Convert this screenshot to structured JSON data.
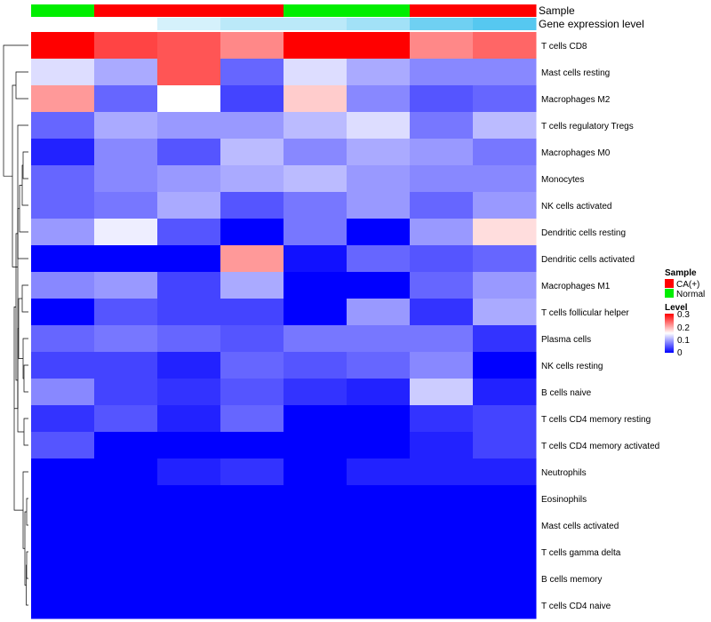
{
  "chart_data": {
    "type": "heatmap",
    "rows": [
      "T cells CD8",
      "Mast cells resting",
      "Macrophages M2",
      "T cells regulatory  Tregs",
      "Macrophages M0",
      "Monocytes",
      "NK cells activated",
      "Dendritic cells resting",
      "Dendritic cells activated",
      "Macrophages M1",
      "T cells follicular helper",
      "Plasma cells",
      "NK cells resting",
      "B cells naive",
      "T cells CD4 memory resting",
      "T cells CD4 memory activated",
      "Neutrophils",
      "Eosinophils",
      "Mast cells activated",
      "T cells gamma delta",
      "B cells memory",
      "T cells CD4 naive"
    ],
    "values": [
      [
        0.3,
        0.26,
        0.25,
        0.22,
        0.3,
        0.3,
        0.22,
        0.24
      ],
      [
        0.13,
        0.1,
        0.25,
        0.06,
        0.13,
        0.1,
        0.08,
        0.08
      ],
      [
        0.21,
        0.06,
        0.15,
        0.04,
        0.18,
        0.08,
        0.05,
        0.06
      ],
      [
        0.06,
        0.1,
        0.09,
        0.09,
        0.11,
        0.13,
        0.07,
        0.11
      ],
      [
        0.02,
        0.08,
        0.05,
        0.11,
        0.08,
        0.1,
        0.09,
        0.07
      ],
      [
        0.06,
        0.08,
        0.09,
        0.1,
        0.11,
        0.09,
        0.08,
        0.08
      ],
      [
        0.06,
        0.07,
        0.1,
        0.05,
        0.07,
        0.09,
        0.06,
        0.09
      ],
      [
        0.09,
        0.14,
        0.05,
        0.0,
        0.07,
        0.0,
        0.09,
        0.17
      ],
      [
        0.0,
        0.0,
        0.0,
        0.21,
        0.01,
        0.06,
        0.05,
        0.06
      ],
      [
        0.08,
        0.09,
        0.04,
        0.1,
        0.0,
        0.0,
        0.06,
        0.09
      ],
      [
        0.0,
        0.05,
        0.04,
        0.04,
        0.0,
        0.09,
        0.03,
        0.1
      ],
      [
        0.06,
        0.07,
        0.06,
        0.05,
        0.07,
        0.07,
        0.07,
        0.03
      ],
      [
        0.04,
        0.04,
        0.02,
        0.06,
        0.05,
        0.06,
        0.08,
        0.0
      ],
      [
        0.08,
        0.04,
        0.03,
        0.05,
        0.03,
        0.02,
        0.12,
        0.02
      ],
      [
        0.03,
        0.05,
        0.02,
        0.06,
        0.0,
        0.0,
        0.03,
        0.04
      ],
      [
        0.05,
        0.0,
        0.0,
        0.0,
        0.0,
        0.0,
        0.02,
        0.04
      ],
      [
        0.0,
        0.0,
        0.02,
        0.03,
        0.0,
        0.02,
        0.02,
        0.02
      ],
      [
        0.0,
        0.0,
        0.0,
        0.0,
        0.0,
        0.0,
        0.0,
        0.0
      ],
      [
        0.0,
        0.0,
        0.0,
        0.0,
        0.0,
        0.0,
        0.0,
        0.0
      ],
      [
        0.0,
        0.0,
        0.0,
        0.0,
        0.0,
        0.0,
        0.0,
        0.0
      ],
      [
        0.0,
        0.0,
        0.0,
        0.0,
        0.0,
        0.0,
        0.0,
        0.0
      ],
      [
        0.0,
        0.0,
        0.0,
        0.0,
        0.0,
        0.0,
        0.0,
        0.0
      ]
    ],
    "column_annotations": {
      "sample_label": "Sample",
      "sample": [
        "Normal",
        "CA(+)",
        "CA(+)",
        "CA(+)",
        "Normal",
        "Normal",
        "CA(+)",
        "CA(+)"
      ],
      "gene_label": "Gene expression level",
      "gene_level": [
        0.0,
        0.0,
        0.25,
        0.4,
        0.4,
        0.55,
        0.85,
        1.0
      ]
    },
    "legend": {
      "sample_title": "Sample",
      "sample_entries": [
        {
          "label": "CA(+)",
          "color": "#ff0000"
        },
        {
          "label": "Normal",
          "color": "#00ee00"
        }
      ],
      "level_title": "Level",
      "level_ticks": [
        "0.3",
        "0.2",
        "0.1",
        "0"
      ],
      "level_range": [
        0,
        0.3
      ]
    },
    "colors": {
      "low": "#0000ff",
      "mid": "#ffffff",
      "high": "#ff0000",
      "gene_low": "#ffffff",
      "gene_high": "#56c8f0"
    }
  }
}
